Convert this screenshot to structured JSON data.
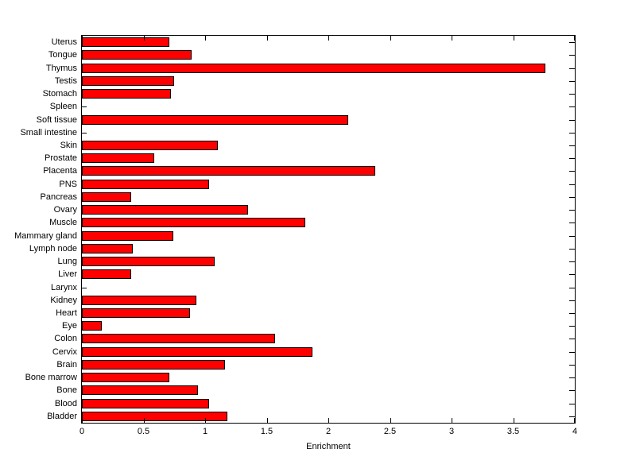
{
  "chart_data": {
    "type": "bar",
    "orientation": "horizontal",
    "title": "",
    "xlabel": "Enrichment",
    "ylabel": "",
    "xlim": [
      0,
      4
    ],
    "x_ticks": [
      0,
      0.5,
      1,
      1.5,
      2,
      2.5,
      3,
      3.5,
      4
    ],
    "x_tick_labels": [
      "0",
      "0.5",
      "1",
      "1.5",
      "2",
      "2.5",
      "3",
      "3.5",
      "4"
    ],
    "categories": [
      "Uterus",
      "Tongue",
      "Thymus",
      "Testis",
      "Stomach",
      "Spleen",
      "Soft tissue",
      "Small intestine",
      "Skin",
      "Prostate",
      "Placenta",
      "PNS",
      "Pancreas",
      "Ovary",
      "Muscle",
      "Mammary gland",
      "Lymph node",
      "Lung",
      "Liver",
      "Larynx",
      "Kidney",
      "Heart",
      "Eye",
      "Colon",
      "Cervix",
      "Brain",
      "Bone marrow",
      "Bone",
      "Blood",
      "Bladder"
    ],
    "values": [
      0.71,
      0.89,
      3.76,
      0.75,
      0.72,
      0,
      2.16,
      0,
      1.1,
      0.59,
      2.38,
      1.03,
      0.4,
      1.35,
      1.81,
      0.74,
      0.41,
      1.08,
      0.4,
      0,
      0.93,
      0.88,
      0.16,
      1.57,
      1.87,
      1.16,
      0.71,
      0.94,
      1.03,
      1.18
    ],
    "bar_color": "#ff0000",
    "bar_edge_color": "#000000",
    "axis_color": "#000000",
    "background_color": "#ffffff",
    "grid": false,
    "legend": false
  }
}
